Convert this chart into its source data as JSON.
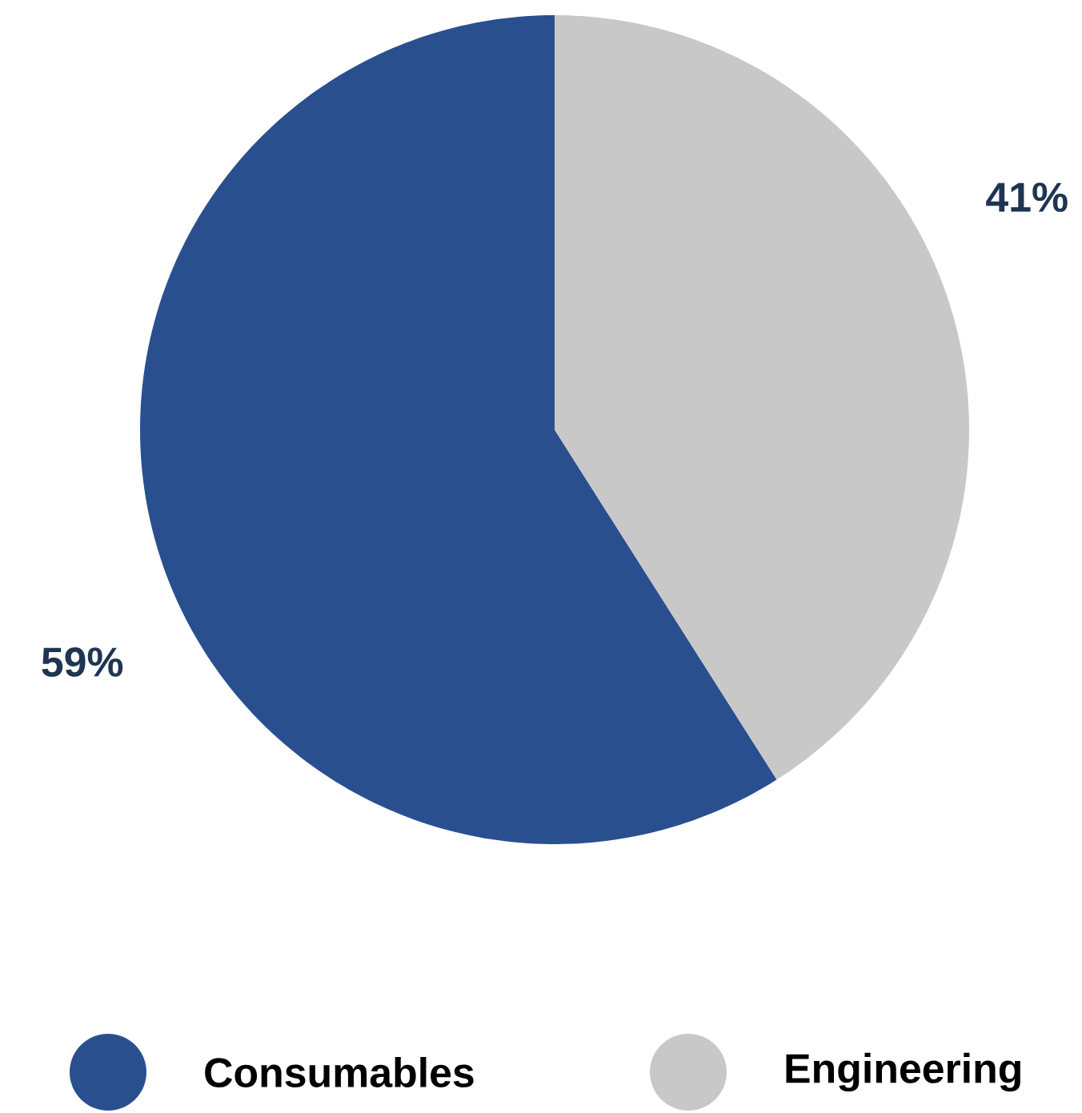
{
  "chart_data": {
    "type": "pie",
    "categories": [
      "Consumables",
      "Engineering"
    ],
    "values": [
      59,
      41
    ],
    "colors": [
      "#2a4f8f",
      "#c8c8c8"
    ],
    "value_labels": [
      "59%",
      "41%"
    ],
    "legend": "bottom"
  }
}
